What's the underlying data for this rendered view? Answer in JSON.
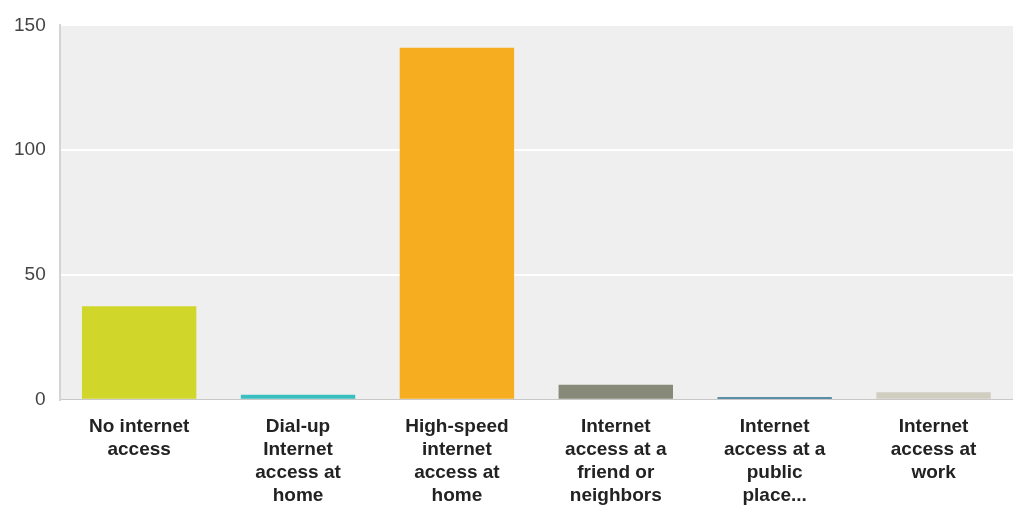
{
  "chart_data": {
    "type": "bar",
    "categories": [
      "No internet access",
      "Dial-up Internet access at home",
      "High-speed internet access at home",
      "Internet access at a friend or neighbors",
      "Internet access at a public place...",
      "Internet access at work"
    ],
    "values": [
      37.5,
      2,
      141,
      6,
      1,
      3
    ],
    "colors": [
      "#d0d62a",
      "#3abfc0",
      "#f6ae20",
      "#888a79",
      "#2a6e8c",
      "#d0cec0"
    ],
    "ylim": [
      0,
      150
    ],
    "yticks": [
      0,
      50,
      100,
      150
    ],
    "grid": "y",
    "legend": false
  }
}
